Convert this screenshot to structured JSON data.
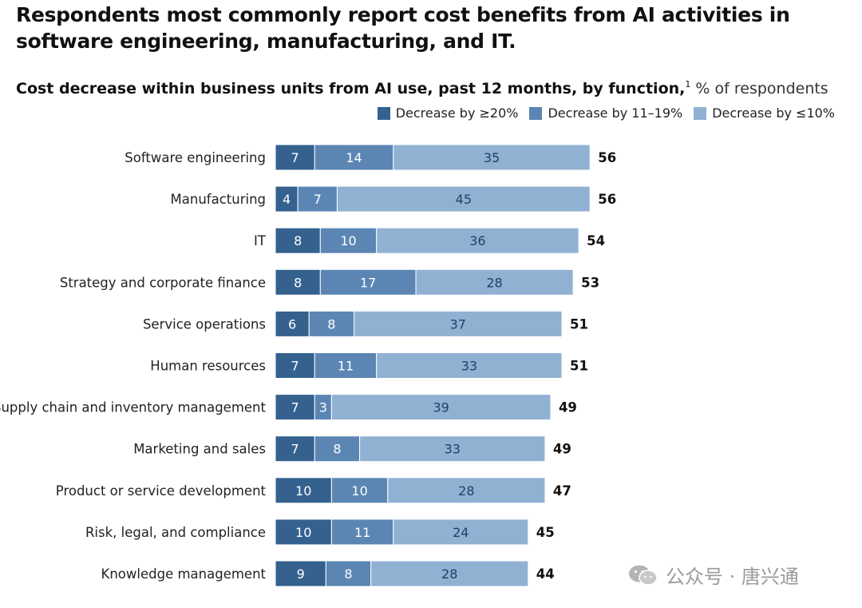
{
  "headline": "Respondents most commonly report cost benefits from AI activities in software engineering, manufacturing, and IT.",
  "subtitle": {
    "main": "Cost decrease within business units from AI use, past 12 months, by function,",
    "footnote": "1",
    "unit": " % of respondents"
  },
  "watermark": "公众号 · 唐兴通",
  "colors": {
    "dark": "#34618e",
    "mid": "#5b86b4",
    "light": "#91b1d3"
  },
  "chart_data": {
    "type": "bar",
    "orientation": "horizontal",
    "stacked": true,
    "title": "Cost decrease within business units from AI use, past 12 months, by function",
    "xlabel": "% of respondents",
    "xlim": [
      0,
      60
    ],
    "legend_position": "top-right",
    "categories": [
      "Software engineering",
      "Manufacturing",
      "IT",
      "Strategy and corporate finance",
      "Service operations",
      "Human resources",
      "Supply chain and inventory management",
      "Marketing and sales",
      "Product or service development",
      "Risk, legal, and compliance",
      "Knowledge management"
    ],
    "series": [
      {
        "name": "Decrease by ≥20%",
        "values": [
          7,
          4,
          8,
          8,
          6,
          7,
          7,
          7,
          10,
          10,
          9
        ]
      },
      {
        "name": "Decrease by 11–19%",
        "values": [
          14,
          7,
          10,
          17,
          8,
          11,
          3,
          8,
          10,
          11,
          8
        ]
      },
      {
        "name": "Decrease by ≤10%",
        "values": [
          35,
          45,
          36,
          28,
          37,
          33,
          39,
          33,
          28,
          24,
          28
        ]
      }
    ],
    "totals": [
      56,
      56,
      54,
      53,
      51,
      51,
      49,
      49,
      47,
      45,
      44
    ]
  }
}
